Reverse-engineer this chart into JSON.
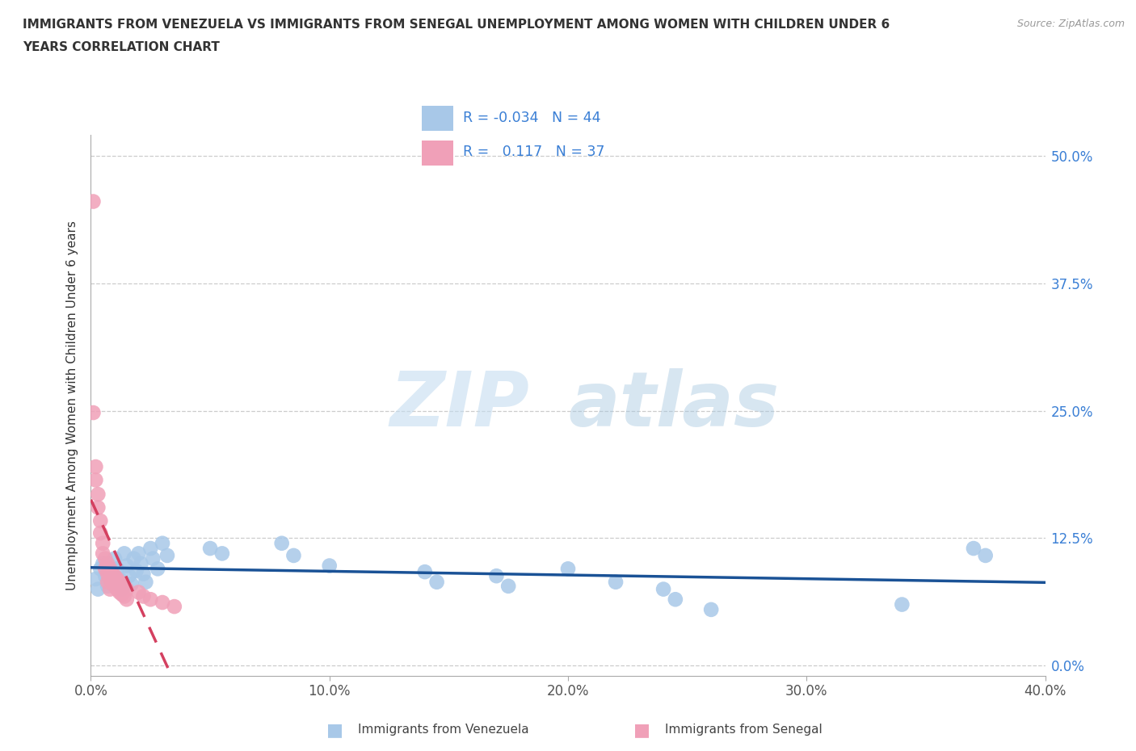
{
  "title_line1": "IMMIGRANTS FROM VENEZUELA VS IMMIGRANTS FROM SENEGAL UNEMPLOYMENT AMONG WOMEN WITH CHILDREN UNDER 6",
  "title_line2": "YEARS CORRELATION CHART",
  "source": "Source: ZipAtlas.com",
  "ylabel": "Unemployment Among Women with Children Under 6 years",
  "xlim": [
    0.0,
    0.4
  ],
  "ylim": [
    -0.01,
    0.52
  ],
  "xticks": [
    0.0,
    0.1,
    0.2,
    0.3,
    0.4
  ],
  "xtick_labels": [
    "0.0%",
    "10.0%",
    "20.0%",
    "30.0%",
    "40.0%"
  ],
  "yticks": [
    0.0,
    0.125,
    0.25,
    0.375,
    0.5
  ],
  "ytick_labels": [
    "0.0%",
    "12.5%",
    "25.0%",
    "37.5%",
    "50.0%"
  ],
  "venezuela_color": "#a8c8e8",
  "senegal_color": "#f0a0b8",
  "venezuela_line_color": "#1a5296",
  "senegal_line_color": "#d44060",
  "r_venezuela": -0.034,
  "n_venezuela": 44,
  "r_senegal": 0.117,
  "n_senegal": 37,
  "watermark_zip": "ZIP",
  "watermark_atlas": "atlas",
  "venezuela_points": [
    [
      0.002,
      0.085
    ],
    [
      0.003,
      0.075
    ],
    [
      0.004,
      0.095
    ],
    [
      0.005,
      0.1
    ],
    [
      0.006,
      0.088
    ],
    [
      0.007,
      0.078
    ],
    [
      0.008,
      0.092
    ],
    [
      0.009,
      0.082
    ],
    [
      0.01,
      0.105
    ],
    [
      0.011,
      0.095
    ],
    [
      0.012,
      0.085
    ],
    [
      0.013,
      0.075
    ],
    [
      0.014,
      0.11
    ],
    [
      0.015,
      0.098
    ],
    [
      0.016,
      0.088
    ],
    [
      0.017,
      0.08
    ],
    [
      0.018,
      0.105
    ],
    [
      0.019,
      0.093
    ],
    [
      0.02,
      0.11
    ],
    [
      0.021,
      0.1
    ],
    [
      0.022,
      0.09
    ],
    [
      0.023,
      0.082
    ],
    [
      0.025,
      0.115
    ],
    [
      0.026,
      0.105
    ],
    [
      0.028,
      0.095
    ],
    [
      0.03,
      0.12
    ],
    [
      0.032,
      0.108
    ],
    [
      0.05,
      0.115
    ],
    [
      0.055,
      0.11
    ],
    [
      0.08,
      0.12
    ],
    [
      0.085,
      0.108
    ],
    [
      0.1,
      0.098
    ],
    [
      0.14,
      0.092
    ],
    [
      0.145,
      0.082
    ],
    [
      0.17,
      0.088
    ],
    [
      0.175,
      0.078
    ],
    [
      0.2,
      0.095
    ],
    [
      0.22,
      0.082
    ],
    [
      0.24,
      0.075
    ],
    [
      0.245,
      0.065
    ],
    [
      0.26,
      0.055
    ],
    [
      0.34,
      0.06
    ],
    [
      0.37,
      0.115
    ],
    [
      0.375,
      0.108
    ]
  ],
  "senegal_points": [
    [
      0.001,
      0.455
    ],
    [
      0.001,
      0.248
    ],
    [
      0.002,
      0.195
    ],
    [
      0.002,
      0.182
    ],
    [
      0.003,
      0.168
    ],
    [
      0.003,
      0.155
    ],
    [
      0.004,
      0.142
    ],
    [
      0.004,
      0.13
    ],
    [
      0.005,
      0.12
    ],
    [
      0.005,
      0.11
    ],
    [
      0.006,
      0.105
    ],
    [
      0.006,
      0.095
    ],
    [
      0.007,
      0.1
    ],
    [
      0.007,
      0.09
    ],
    [
      0.007,
      0.082
    ],
    [
      0.008,
      0.095
    ],
    [
      0.008,
      0.085
    ],
    [
      0.008,
      0.075
    ],
    [
      0.009,
      0.09
    ],
    [
      0.009,
      0.082
    ],
    [
      0.01,
      0.088
    ],
    [
      0.01,
      0.078
    ],
    [
      0.011,
      0.085
    ],
    [
      0.011,
      0.075
    ],
    [
      0.012,
      0.082
    ],
    [
      0.012,
      0.072
    ],
    [
      0.013,
      0.08
    ],
    [
      0.013,
      0.07
    ],
    [
      0.014,
      0.078
    ],
    [
      0.014,
      0.068
    ],
    [
      0.015,
      0.075
    ],
    [
      0.015,
      0.065
    ],
    [
      0.02,
      0.072
    ],
    [
      0.022,
      0.068
    ],
    [
      0.025,
      0.065
    ],
    [
      0.03,
      0.062
    ],
    [
      0.035,
      0.058
    ]
  ]
}
